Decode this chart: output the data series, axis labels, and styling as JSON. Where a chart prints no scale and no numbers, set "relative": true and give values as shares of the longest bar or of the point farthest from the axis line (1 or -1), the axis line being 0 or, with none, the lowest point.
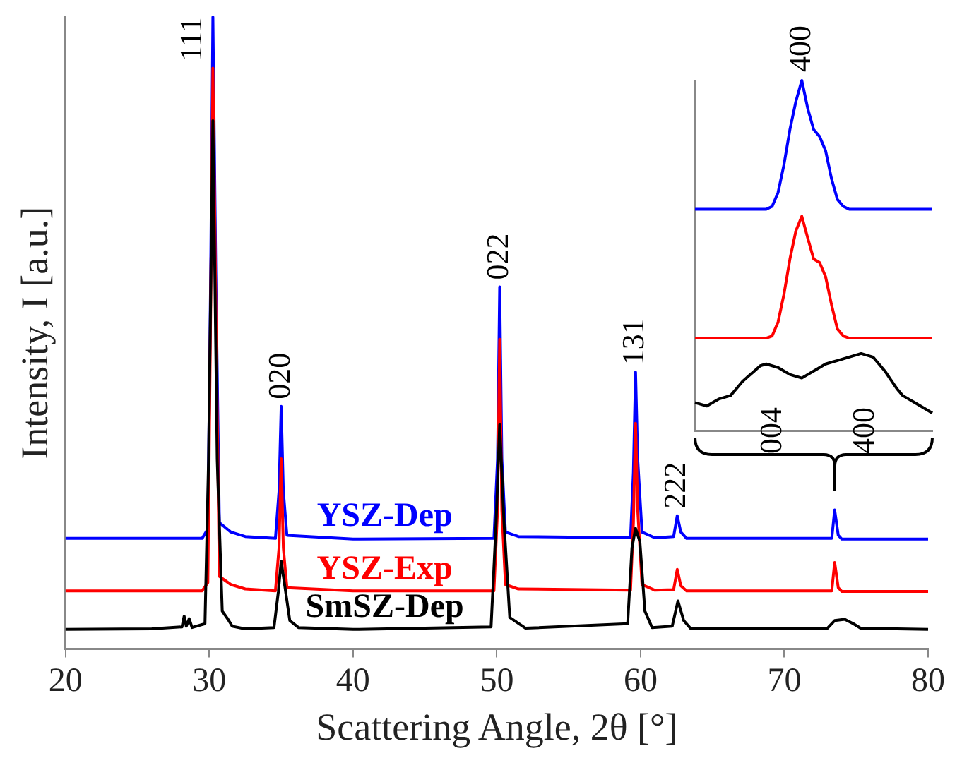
{
  "chart_data": [
    {
      "type": "line",
      "relative": true,
      "xlabel": "Scattering Angle, 2θ [°]",
      "ylabel": "Intensity, I [a.u.]",
      "xlim": [
        20,
        80
      ],
      "xticks": [
        20,
        30,
        40,
        50,
        60,
        70,
        80
      ],
      "tick_labels": "x",
      "legend": false,
      "marker": "none",
      "series": [
        {
          "name": "YSZ-Dep",
          "color": "#0000ff",
          "x": [
            20,
            29.5,
            29.9,
            30.1,
            30.25,
            30.45,
            30.7,
            31.5,
            32.5,
            34.6,
            34.85,
            35.0,
            35.15,
            35.4,
            40,
            49.8,
            50.05,
            50.2,
            50.35,
            50.6,
            51.5,
            59.3,
            59.5,
            59.65,
            59.8,
            60.1,
            61,
            62.3,
            62.55,
            62.8,
            63.2,
            73.3,
            73.5,
            73.75,
            74,
            80
          ],
          "values": [
            0.175,
            0.175,
            0.19,
            0.6,
            1.0,
            0.6,
            0.2,
            0.185,
            0.178,
            0.175,
            0.25,
            0.384,
            0.25,
            0.18,
            0.174,
            0.175,
            0.3,
            0.573,
            0.3,
            0.185,
            0.178,
            0.176,
            0.28,
            0.438,
            0.3,
            0.185,
            0.176,
            0.178,
            0.211,
            0.185,
            0.175,
            0.175,
            0.22,
            0.18,
            0.174,
            0.174
          ]
        },
        {
          "name": "YSZ-Exp",
          "color": "#ff0000",
          "x": [
            20,
            29.5,
            29.9,
            30.1,
            30.25,
            30.45,
            30.7,
            31.5,
            32.5,
            34.6,
            34.85,
            35.0,
            35.15,
            35.4,
            40,
            49.8,
            50.05,
            50.2,
            50.35,
            50.6,
            51.5,
            59.3,
            59.5,
            59.65,
            59.8,
            60.1,
            61,
            62.3,
            62.55,
            62.8,
            63.2,
            73.3,
            73.5,
            73.75,
            74,
            80
          ],
          "values": [
            0.092,
            0.092,
            0.105,
            0.55,
            0.919,
            0.55,
            0.115,
            0.102,
            0.095,
            0.092,
            0.16,
            0.301,
            0.16,
            0.097,
            0.092,
            0.092,
            0.22,
            0.49,
            0.22,
            0.102,
            0.095,
            0.093,
            0.2,
            0.357,
            0.22,
            0.102,
            0.093,
            0.094,
            0.126,
            0.1,
            0.092,
            0.092,
            0.137,
            0.097,
            0.091,
            0.091
          ]
        },
        {
          "name": "SmSZ-Dep",
          "color": "#000000",
          "x": [
            20,
            26,
            28.1,
            28.25,
            28.4,
            28.6,
            28.8,
            29.7,
            29.95,
            30.25,
            30.55,
            30.9,
            31.3,
            31.6,
            32.5,
            34.5,
            34.8,
            35.0,
            35.25,
            35.6,
            36.2,
            40,
            49.6,
            49.95,
            50.2,
            50.5,
            50.9,
            52,
            59.1,
            59.4,
            59.65,
            59.95,
            60.3,
            60.8,
            62.2,
            62.6,
            63.0,
            63.5,
            73,
            73.5,
            74.2,
            74.8,
            75.3,
            80
          ],
          "values": [
            0.031,
            0.032,
            0.035,
            0.052,
            0.036,
            0.048,
            0.034,
            0.04,
            0.3,
            0.836,
            0.3,
            0.06,
            0.047,
            0.036,
            0.032,
            0.034,
            0.09,
            0.139,
            0.1,
            0.045,
            0.034,
            0.031,
            0.035,
            0.2,
            0.355,
            0.2,
            0.05,
            0.033,
            0.04,
            0.16,
            0.191,
            0.17,
            0.06,
            0.034,
            0.036,
            0.076,
            0.045,
            0.032,
            0.033,
            0.045,
            0.047,
            0.04,
            0.033,
            0.031
          ]
        }
      ],
      "annotations": [
        {
          "text": "111",
          "x": 30.25,
          "y": 1.0
        },
        {
          "text": "020",
          "x": 35.0,
          "y": 0.384
        },
        {
          "text": "022",
          "x": 50.2,
          "y": 0.573
        },
        {
          "text": "131",
          "x": 59.65,
          "y": 0.438
        },
        {
          "text": "222",
          "x": 62.55,
          "y": 0.211
        }
      ]
    },
    {
      "type": "line",
      "relative": true,
      "tick_labels": false,
      "legend": false,
      "marker": "none",
      "categories": [
        null,
        null,
        null,
        null,
        null,
        null,
        null,
        null,
        null,
        null,
        null,
        null,
        null,
        null,
        null,
        null,
        null,
        null,
        null,
        null,
        null,
        null,
        null,
        null,
        null,
        null,
        null,
        null,
        null,
        null,
        null,
        null,
        null,
        null,
        null,
        null,
        null,
        null,
        null,
        null,
        null
      ],
      "series": [
        {
          "color": "#0000ff",
          "values": [
            0.632,
            0.632,
            0.632,
            0.632,
            0.632,
            0.632,
            0.632,
            0.632,
            0.632,
            0.632,
            0.632,
            0.632,
            0.632,
            0.64,
            0.68,
            0.76,
            0.86,
            0.94,
            1.0,
            0.92,
            0.86,
            0.84,
            0.8,
            0.72,
            0.66,
            0.64,
            0.632,
            0.632,
            0.632,
            0.632,
            0.632,
            0.632,
            0.632,
            0.632,
            0.632,
            0.632,
            0.632,
            0.632,
            0.632,
            0.632,
            0.632
          ]
        },
        {
          "color": "#ff0000",
          "values": [
            0.264,
            0.264,
            0.264,
            0.264,
            0.264,
            0.264,
            0.264,
            0.264,
            0.264,
            0.264,
            0.264,
            0.264,
            0.264,
            0.27,
            0.31,
            0.39,
            0.49,
            0.57,
            0.612,
            0.55,
            0.49,
            0.48,
            0.44,
            0.36,
            0.29,
            0.27,
            0.264,
            0.264,
            0.264,
            0.264,
            0.264,
            0.264,
            0.264,
            0.264,
            0.264,
            0.264,
            0.264,
            0.264,
            0.264,
            0.264,
            0.264
          ]
        },
        {
          "color": "#000000",
          "values": [
            0.08,
            0.075,
            0.07,
            0.08,
            0.09,
            0.095,
            0.1,
            0.12,
            0.14,
            0.155,
            0.17,
            0.185,
            0.19,
            0.185,
            0.18,
            0.17,
            0.16,
            0.155,
            0.15,
            0.16,
            0.17,
            0.18,
            0.19,
            0.195,
            0.2,
            0.205,
            0.21,
            0.215,
            0.22,
            0.215,
            0.21,
            0.19,
            0.17,
            0.145,
            0.12,
            0.1,
            0.09,
            0.08,
            0.07,
            0.06,
            0.05
          ]
        }
      ],
      "annotations": [
        "400",
        "004",
        "400"
      ]
    }
  ]
}
